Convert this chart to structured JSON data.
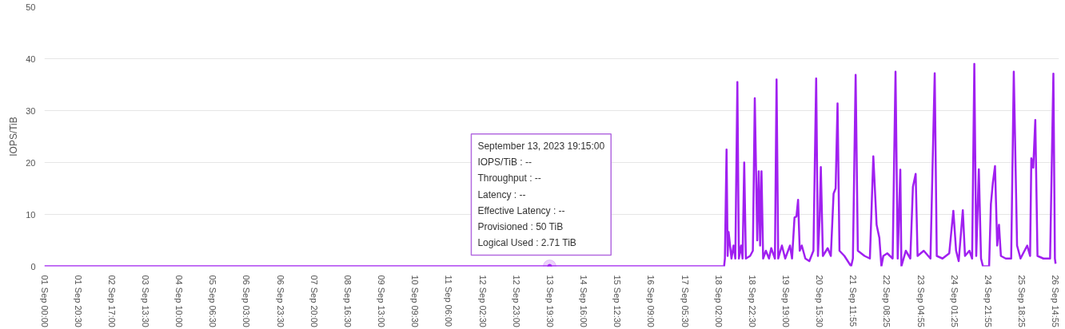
{
  "chart_data": {
    "type": "line",
    "ylabel": "IOPS/TiB",
    "ylim": [
      0,
      50
    ],
    "yticks": [
      0,
      10,
      20,
      30,
      40,
      50
    ],
    "xlim": [
      "2023-09-01T00:00",
      "2023-09-26T17:00"
    ],
    "xticks": [
      {
        "value": "2023-09-01T00:00",
        "label": "01 Sep 00:00"
      },
      {
        "value": "2023-09-01T20:30",
        "label": "01 Sep 20:30"
      },
      {
        "value": "2023-09-02T17:00",
        "label": "02 Sep 17:00"
      },
      {
        "value": "2023-09-03T13:30",
        "label": "03 Sep 13:30"
      },
      {
        "value": "2023-09-04T10:00",
        "label": "04 Sep 10:00"
      },
      {
        "value": "2023-09-05T06:30",
        "label": "05 Sep 06:30"
      },
      {
        "value": "2023-09-06T03:00",
        "label": "06 Sep 03:00"
      },
      {
        "value": "2023-09-06T23:30",
        "label": "06 Sep 23:30"
      },
      {
        "value": "2023-09-07T20:00",
        "label": "07 Sep 20:00"
      },
      {
        "value": "2023-09-08T16:30",
        "label": "08 Sep 16:30"
      },
      {
        "value": "2023-09-09T13:00",
        "label": "09 Sep 13:00"
      },
      {
        "value": "2023-09-10T09:30",
        "label": "10 Sep 09:30"
      },
      {
        "value": "2023-09-11T06:00",
        "label": "11 Sep 06:00"
      },
      {
        "value": "2023-09-12T02:30",
        "label": "12 Sep 02:30"
      },
      {
        "value": "2023-09-12T23:00",
        "label": "12 Sep 23:00"
      },
      {
        "value": "2023-09-13T19:30",
        "label": "13 Sep 19:30"
      },
      {
        "value": "2023-09-14T16:00",
        "label": "14 Sep 16:00"
      },
      {
        "value": "2023-09-15T12:30",
        "label": "15 Sep 12:30"
      },
      {
        "value": "2023-09-16T09:00",
        "label": "16 Sep 09:00"
      },
      {
        "value": "2023-09-17T05:30",
        "label": "17 Sep 05:30"
      },
      {
        "value": "2023-09-18T02:00",
        "label": "18 Sep 02:00"
      },
      {
        "value": "2023-09-18T22:30",
        "label": "18 Sep 22:30"
      },
      {
        "value": "2023-09-19T19:00",
        "label": "19 Sep 19:00"
      },
      {
        "value": "2023-09-20T15:30",
        "label": "20 Sep 15:30"
      },
      {
        "value": "2023-09-21T11:55",
        "label": "21 Sep 11:55"
      },
      {
        "value": "2023-09-22T08:25",
        "label": "22 Sep 08:25"
      },
      {
        "value": "2023-09-23T04:55",
        "label": "23 Sep 04:55"
      },
      {
        "value": "2023-09-24T01:25",
        "label": "24 Sep 01:25"
      },
      {
        "value": "2023-09-24T21:55",
        "label": "24 Sep 21:55"
      },
      {
        "value": "2023-09-25T18:25",
        "label": "25 Sep 18:25"
      },
      {
        "value": "2023-09-26T14:55",
        "label": "26 Sep 14:55"
      }
    ],
    "grid": "y",
    "line_style": "solid",
    "marker": "none",
    "annotations": [
      {
        "text": "September 13, 2023 19:15:00\nIOPS/TiB : --\nThroughput : --\nLatency : --\nEffective Latency : --\nProvisioned : 50 TiB\nLogical Used : 2.71 TiB",
        "x": "2023-09-13T19:15",
        "y": 0
      }
    ],
    "series": [
      {
        "color": "#a020f0",
        "x": [
          "2023-09-01T00:00",
          "2023-09-18T05:20",
          "2023-09-18T05:50",
          "2023-09-18T06:50",
          "2023-09-18T07:30",
          "2023-09-18T08:05",
          "2023-09-18T09:50",
          "2023-09-18T11:05",
          "2023-09-18T12:10",
          "2023-09-18T13:25",
          "2023-09-18T14:20",
          "2023-09-18T15:40",
          "2023-09-18T16:35",
          "2023-09-18T17:35",
          "2023-09-18T18:35",
          "2023-09-18T21:10",
          "2023-09-18T22:50",
          "2023-09-19T00:00",
          "2023-09-19T01:30",
          "2023-09-19T02:25",
          "2023-09-19T03:15",
          "2023-09-19T04:05",
          "2023-09-19T05:05",
          "2023-09-19T06:45",
          "2023-09-19T08:40",
          "2023-09-19T10:00",
          "2023-09-19T12:15",
          "2023-09-19T13:15",
          "2023-09-19T14:15",
          "2023-09-19T16:30",
          "2023-09-19T18:30",
          "2023-09-19T21:25",
          "2023-09-19T22:40",
          "2023-09-20T00:10",
          "2023-09-20T01:20",
          "2023-09-20T02:20",
          "2023-09-20T03:20",
          "2023-09-20T04:35",
          "2023-09-20T06:45",
          "2023-09-20T09:10",
          "2023-09-20T11:40",
          "2023-09-20T13:20",
          "2023-09-20T14:25",
          "2023-09-20T15:25",
          "2023-09-20T16:10",
          "2023-09-20T17:25",
          "2023-09-20T20:20",
          "2023-09-20T22:15",
          "2023-09-20T23:55",
          "2023-09-21T01:10",
          "2023-09-21T02:20",
          "2023-09-21T03:30",
          "2023-09-21T06:30",
          "2023-09-21T10:35",
          "2023-09-21T11:40",
          "2023-09-21T13:20",
          "2023-09-21T14:40",
          "2023-09-21T18:45",
          "2023-09-21T22:00",
          "2023-09-22T00:05",
          "2023-09-22T02:05",
          "2023-09-22T03:45",
          "2023-09-22T05:00",
          "2023-09-22T06:10",
          "2023-09-22T08:35",
          "2023-09-22T11:50",
          "2023-09-22T13:35",
          "2023-09-22T14:55",
          "2023-09-22T16:30",
          "2023-09-22T17:10",
          "2023-09-22T19:50",
          "2023-09-22T22:35",
          "2023-09-23T00:10",
          "2023-09-23T01:50",
          "2023-09-23T03:00",
          "2023-09-23T06:45",
          "2023-09-23T10:50",
          "2023-09-23T13:25",
          "2023-09-23T14:40",
          "2023-09-23T18:10",
          "2023-09-23T22:15",
          "2023-09-24T00:45",
          "2023-09-24T02:25",
          "2023-09-24T04:00",
          "2023-09-24T06:30",
          "2023-09-24T07:50",
          "2023-09-24T10:30",
          "2023-09-24T12:10",
          "2023-09-24T13:30",
          "2023-09-24T14:40",
          "2023-09-24T16:15",
          "2023-09-24T17:35",
          "2023-09-24T18:45",
          "2023-09-24T22:30",
          "2023-09-24T23:35",
          "2023-09-25T00:45",
          "2023-09-25T02:05",
          "2023-09-25T03:25",
          "2023-09-25T04:30",
          "2023-09-25T05:40",
          "2023-09-25T08:35",
          "2023-09-25T11:55",
          "2023-09-25T13:30",
          "2023-09-25T15:30",
          "2023-09-25T17:35",
          "2023-09-25T21:40",
          "2023-09-25T23:25",
          "2023-09-26T00:10",
          "2023-09-26T01:20",
          "2023-09-26T02:35",
          "2023-09-26T03:55",
          "2023-09-26T07:30",
          "2023-09-26T11:35",
          "2023-09-26T13:35",
          "2023-09-26T14:30",
          "2023-09-26T14:55"
        ],
        "values": [
          0,
          0,
          1.5,
          22.5,
          2,
          6.6,
          1.5,
          4,
          1.5,
          35.5,
          1.5,
          4,
          1.5,
          20,
          1.5,
          2,
          3,
          32.4,
          5,
          18.3,
          4,
          18.3,
          1.5,
          3,
          1.5,
          3.5,
          1.5,
          36,
          1.5,
          4,
          1.5,
          4,
          1.5,
          9.4,
          9.6,
          12.8,
          3,
          4,
          1.5,
          1,
          3,
          36.2,
          2,
          9,
          19.1,
          2,
          3.5,
          2,
          14,
          15,
          31.4,
          3,
          2,
          0,
          1.5,
          36.9,
          3,
          2,
          1.5,
          21.2,
          8,
          5.5,
          0,
          2,
          2.5,
          1.5,
          37.5,
          1.5,
          18.6,
          0,
          3,
          1.5,
          15.3,
          17.8,
          2,
          3,
          1.5,
          37.2,
          2,
          1.5,
          2.5,
          10.7,
          3,
          1,
          10.8,
          2,
          3,
          1.5,
          39,
          2,
          18.7,
          1.5,
          0,
          0,
          12,
          16,
          19.3,
          4,
          8,
          2,
          1.5,
          1.5,
          37.5,
          4,
          1.5,
          4,
          2,
          20.8,
          19,
          28.2,
          2,
          1.5,
          1.5,
          37.1,
          1.5,
          0.5
        ]
      }
    ]
  }
}
